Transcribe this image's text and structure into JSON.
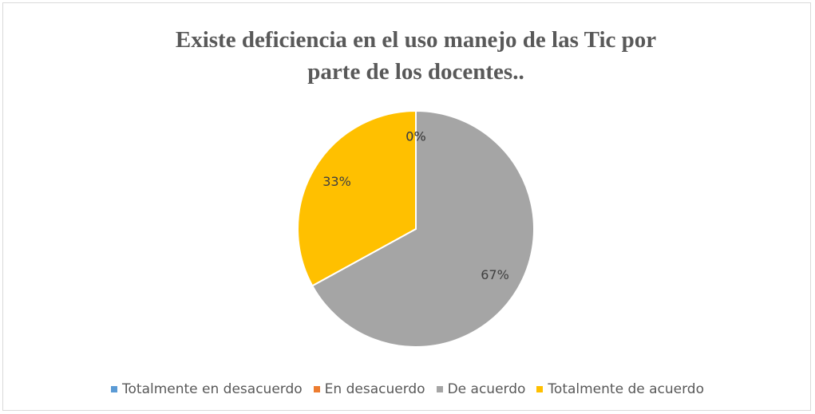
{
  "chart_data": {
    "type": "pie",
    "title": "Existe deficiencia en el uso manejo de las Tic por parte de los docentes..",
    "categories": [
      "Totalmente en desacuerdo",
      "En desacuerdo",
      "De acuerdo",
      "Totalmente de acuerdo"
    ],
    "values": [
      0,
      0,
      67,
      33
    ],
    "value_labels": [
      "0%",
      "0%",
      "67%",
      "33%"
    ],
    "colors": [
      "#5b9bd5",
      "#ed7d31",
      "#a5a5a5",
      "#ffc000"
    ],
    "legend": "bottom"
  }
}
